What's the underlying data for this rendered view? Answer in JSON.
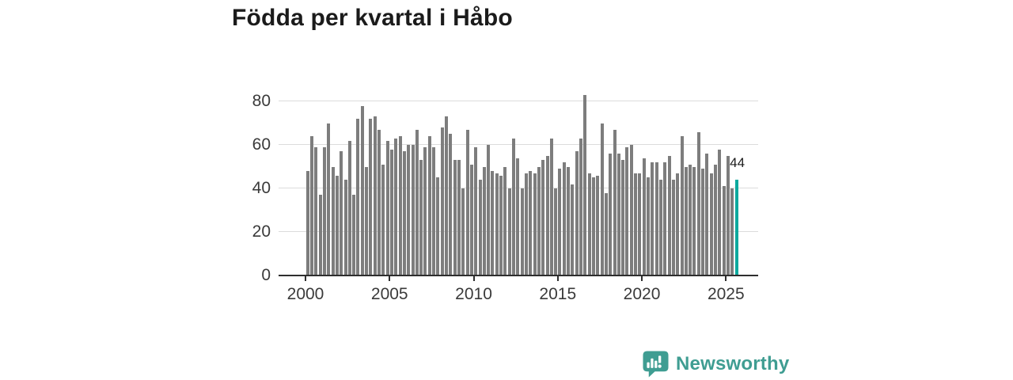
{
  "title": "Födda per kvartal i Håbo",
  "chart_data": {
    "type": "bar",
    "title": "Födda per kvartal i Håbo",
    "frequency": "quarterly",
    "start_period": "2000-Q1",
    "end_period": "2025-Q3",
    "values": [
      48,
      64,
      59,
      37,
      59,
      70,
      50,
      46,
      57,
      44,
      62,
      37,
      72,
      78,
      50,
      72,
      73,
      67,
      51,
      62,
      58,
      63,
      64,
      57,
      60,
      60,
      67,
      53,
      59,
      64,
      59,
      45,
      68,
      73,
      65,
      53,
      53,
      40,
      67,
      51,
      59,
      44,
      50,
      60,
      48,
      47,
      46,
      50,
      40,
      63,
      54,
      40,
      47,
      48,
      47,
      50,
      53,
      55,
      63,
      40,
      49,
      52,
      50,
      42,
      57,
      63,
      83,
      47,
      45,
      46,
      70,
      38,
      56,
      67,
      56,
      53,
      59,
      60,
      47,
      47,
      54,
      45,
      52,
      52,
      44,
      52,
      55,
      44,
      47,
      64,
      50,
      51,
      50,
      66,
      49,
      56,
      47,
      51,
      58,
      41,
      55,
      40,
      44
    ],
    "highlight_index": 102,
    "highlight_value_label": "44",
    "bar_color": "#7d7d7d",
    "highlight_color": "#0ba99e",
    "x_ticks": [
      "2000",
      "2005",
      "2010",
      "2015",
      "2020",
      "2025"
    ],
    "y_ticks": [
      "0",
      "20",
      "40",
      "60",
      "80"
    ],
    "ylim": [
      0,
      88
    ],
    "grid": true,
    "xlabel": "",
    "ylabel": ""
  },
  "logo": {
    "text": "Newsworthy",
    "color": "#3f9d92",
    "icon": "newsworthy-speech-bubble-bar-chart-icon"
  }
}
